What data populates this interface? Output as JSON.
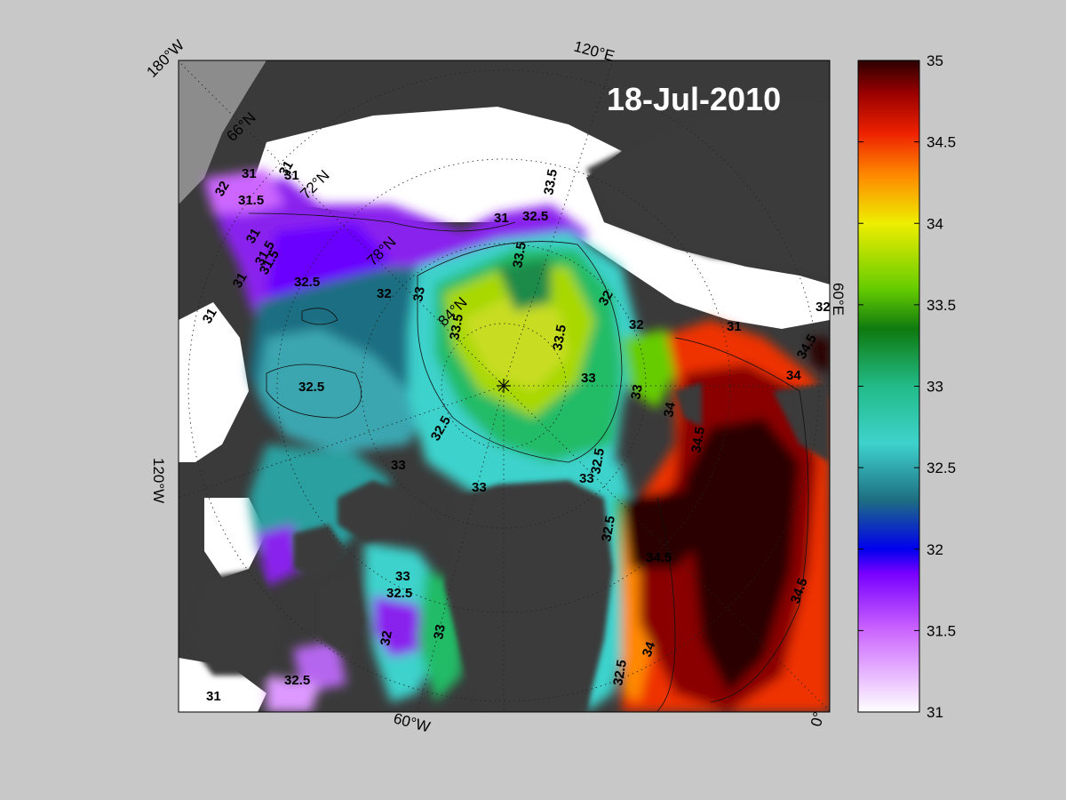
{
  "date_label": "18-Jul-2010",
  "meridian_labels": [
    {
      "text": "180°W"
    },
    {
      "text": "120°E"
    },
    {
      "text": "60°E"
    },
    {
      "text": "120°W"
    },
    {
      "text": "60°W"
    },
    {
      "text": "0°"
    }
  ],
  "latitude_labels": [
    "66°N",
    "72°N",
    "78°N",
    "84°N"
  ],
  "colorbar": {
    "min": 31,
    "max": 35,
    "ticks": [
      "35",
      "34.5",
      "34",
      "33.5",
      "33",
      "32.5",
      "32",
      "31.5",
      "31"
    ],
    "stops": [
      {
        "v": 31.0,
        "c": "#ffffff"
      },
      {
        "v": 31.5,
        "c": "#cc66ff"
      },
      {
        "v": 31.85,
        "c": "#7700ff"
      },
      {
        "v": 32.0,
        "c": "#0000ee"
      },
      {
        "v": 32.3,
        "c": "#1e6e82"
      },
      {
        "v": 32.65,
        "c": "#3ed2cc"
      },
      {
        "v": 33.0,
        "c": "#22bb88"
      },
      {
        "v": 33.35,
        "c": "#0f7a0f"
      },
      {
        "v": 33.6,
        "c": "#66cc00"
      },
      {
        "v": 34.0,
        "c": "#eeee00"
      },
      {
        "v": 34.3,
        "c": "#ff8800"
      },
      {
        "v": 34.55,
        "c": "#ee2200"
      },
      {
        "v": 34.8,
        "c": "#990000"
      },
      {
        "v": 35.0,
        "c": "#2a0000"
      }
    ]
  },
  "contour_labels": [
    "31",
    "31",
    "32",
    "31.5",
    "31",
    "31.5",
    "31",
    "31.5",
    "32.5",
    "32",
    "31",
    "31",
    "32.5",
    "33",
    "33.5",
    "33.5",
    "33.5",
    "33.5",
    "32.5",
    "33",
    "32.5",
    "32",
    "31",
    "32",
    "33",
    "34",
    "34",
    "34.5",
    "34.5",
    "31",
    "33",
    "33",
    "32.5",
    "33",
    "32.5",
    "33",
    "32.5",
    "32",
    "34.5",
    "32.5",
    "34.5",
    "32",
    "31",
    "32.5",
    "33",
    "34"
  ]
}
